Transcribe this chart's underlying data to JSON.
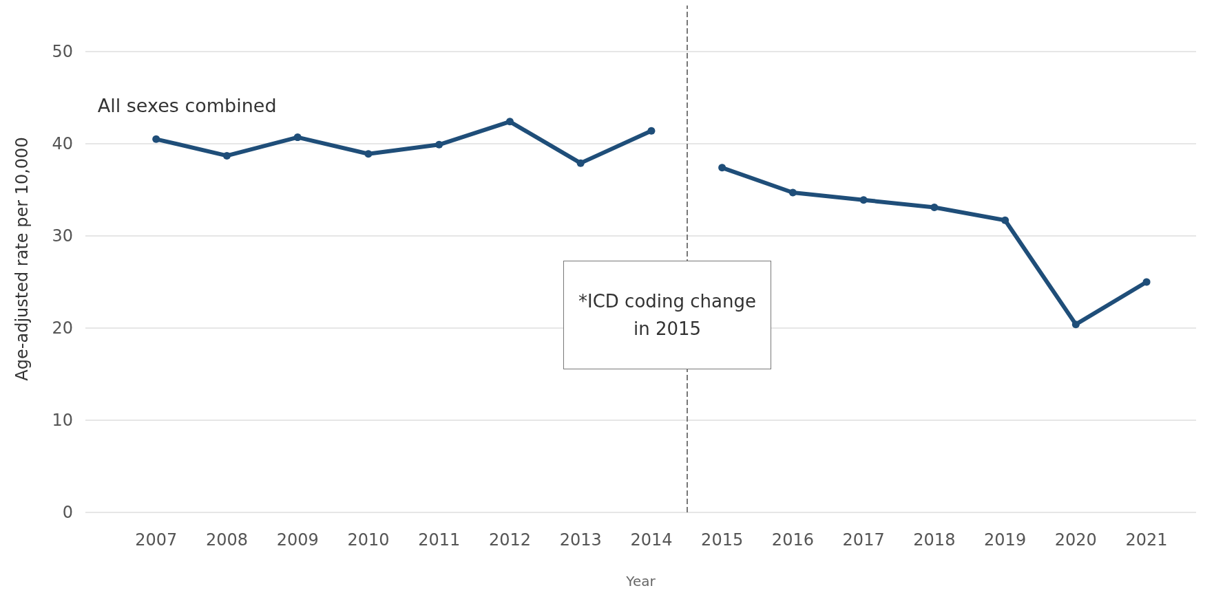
{
  "chart_data": {
    "type": "line",
    "xlabel": "Year",
    "ylabel": "Age-adjusted rate per 10,000",
    "x": [
      2007,
      2008,
      2009,
      2010,
      2011,
      2012,
      2013,
      2014,
      2015,
      2016,
      2017,
      2018,
      2019,
      2020,
      2021
    ],
    "series": [
      {
        "name": "All sexes combined",
        "color": "#1f4e79",
        "values": [
          40.5,
          38.7,
          40.7,
          38.9,
          39.9,
          42.4,
          37.9,
          41.4,
          null,
          null,
          null,
          null,
          null,
          null,
          null
        ]
      },
      {
        "color": "#1f4e79",
        "values": [
          null,
          null,
          null,
          null,
          null,
          null,
          null,
          null,
          37.4,
          34.7,
          33.9,
          33.1,
          31.7,
          20.4,
          25.0
        ]
      }
    ],
    "xlim": [
      2006,
      2021.7
    ],
    "xticks": [
      2007,
      2008,
      2009,
      2010,
      2011,
      2012,
      2013,
      2014,
      2015,
      2016,
      2017,
      2018,
      2019,
      2020,
      2021
    ],
    "ylim": [
      0,
      55
    ],
    "yticks": [
      0,
      10,
      20,
      30,
      40,
      50
    ],
    "ref_lines": [
      {
        "axis": "x",
        "value": 2014.5,
        "color": "#777777",
        "line_style": "dashed"
      }
    ],
    "annotations": [
      "*ICD coding change in 2015"
    ],
    "grid": "y",
    "legend": false,
    "marker": "circle",
    "line_style": "solid"
  }
}
